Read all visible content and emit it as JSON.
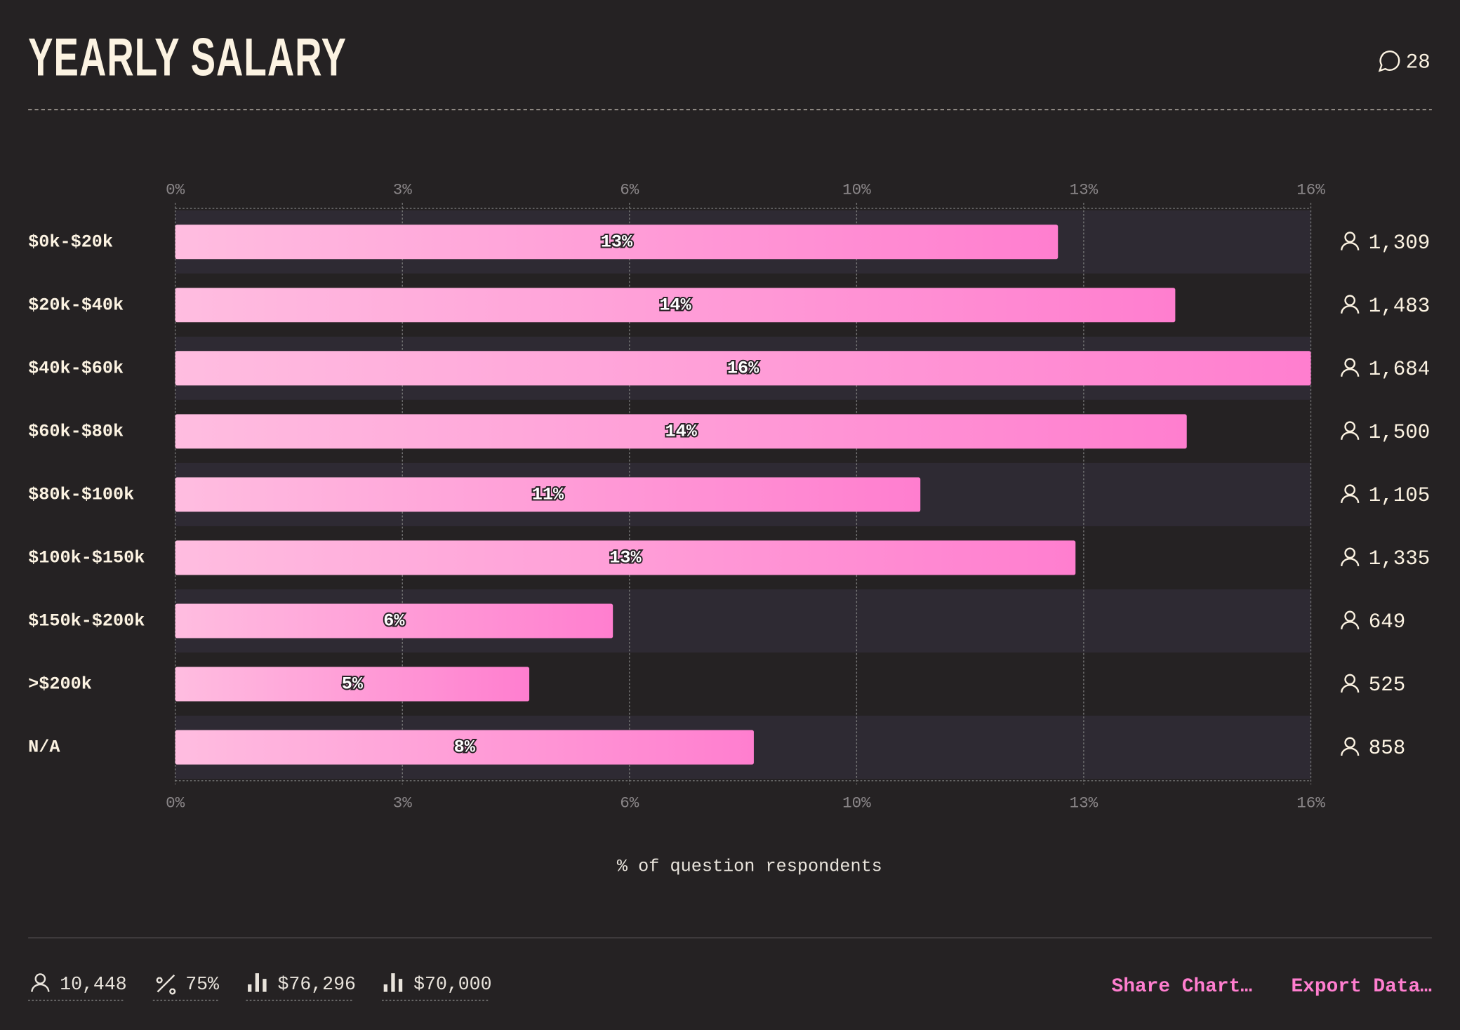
{
  "header": {
    "title": "YEARLY SALARY",
    "comments": "28"
  },
  "chart_data": {
    "type": "bar",
    "orientation": "horizontal",
    "categories": [
      "$0k-$20k",
      "$20k-$40k",
      "$40k-$60k",
      "$60k-$80k",
      "$80k-$100k",
      "$100k-$150k",
      "$150k-$200k",
      ">$200k",
      "N/A"
    ],
    "values": [
      12.529,
      14.194,
      16.118,
      14.357,
      10.576,
      12.778,
      6.212,
      5.025,
      8.212
    ],
    "value_labels": [
      "13%",
      "14%",
      "16%",
      "14%",
      "11%",
      "13%",
      "6%",
      "5%",
      "8%"
    ],
    "counts": [
      "1,309",
      "1,483",
      "1,684",
      "1,500",
      "1,105",
      "1,335",
      "649",
      "525",
      "858"
    ],
    "xlim": [
      0,
      16.118
    ],
    "xticks": [
      {
        "value": 0,
        "label": "0%"
      },
      {
        "value": 3.224,
        "label": "3%"
      },
      {
        "value": 6.447,
        "label": "6%"
      },
      {
        "value": 9.671,
        "label": "10%"
      },
      {
        "value": 12.894,
        "label": "13%"
      },
      {
        "value": 16.118,
        "label": "16%"
      }
    ],
    "xlabel": "% of question respondents",
    "color_start": "#ffbde0",
    "color_end": "#ff7ecf",
    "grid": true
  },
  "footer": {
    "respondents": "10,448",
    "percent": "75%",
    "average": "$76,296",
    "median": "$70,000",
    "share": "Share Chart…",
    "export": "Export Data…"
  }
}
